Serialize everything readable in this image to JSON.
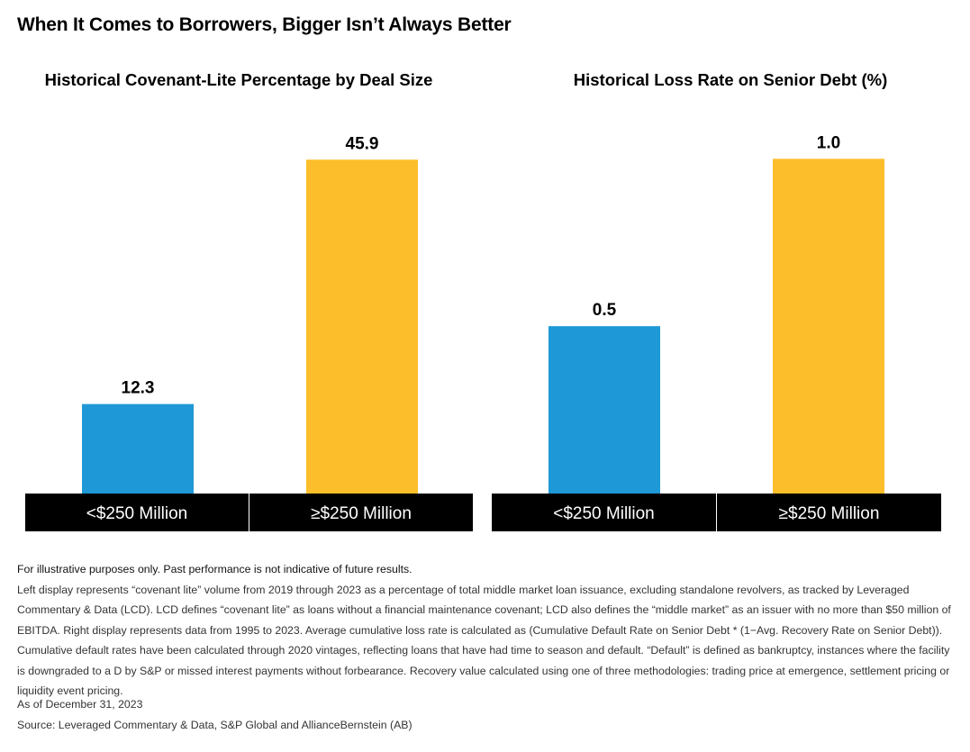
{
  "title": "When It Comes to Borrowers, Bigger Isn’t Always Better",
  "colors": {
    "small": "#1e98d6",
    "large": "#fdbe2b",
    "category_band": "#000000"
  },
  "chart_data": [
    {
      "type": "bar",
      "title": "Historical Covenant-Lite Percentage by Deal Size",
      "categories": [
        "<$250 Million",
        "≥$250 Million"
      ],
      "values": [
        12.3,
        45.9
      ],
      "value_labels": [
        "12.3",
        "45.9"
      ],
      "ylim": [
        0,
        52
      ],
      "grid": false,
      "legend": "none"
    },
    {
      "type": "bar",
      "title": "Historical Loss Rate on Senior Debt (%)",
      "categories": [
        "<$250 Million",
        "≥$250 Million"
      ],
      "values": [
        0.5,
        1.0
      ],
      "value_labels": [
        "0.5",
        "1.0"
      ],
      "ylim": [
        0,
        1.13
      ],
      "grid": false,
      "legend": "none"
    }
  ],
  "footnotes": {
    "disclaimer": "For illustrative purposes only. Past performance is not indicative of future results.",
    "body": "Left display represents “covenant lite” volume from 2019 through 2023 as a percentage of total middle market loan issuance, excluding standalone revolvers, as tracked by Leveraged Commentary & Data (LCD). LCD defines “covenant lite” as loans without a financial maintenance covenant; LCD also defines the “middle market” as an issuer with no more than $50 million of EBITDA. Right display represents data from 1995 to 2023. Average cumulative loss rate is calculated as (Cumulative Default Rate on Senior Debt * (1−Avg. Recovery  Rate on Senior Debt)). Cumulative default rates have been calculated through 2020 vintages, reflecting loans that have had time to season and default. “Default” is defined as bankruptcy, instances where the facility is downgraded to a D by S&P or missed interest payments without forbearance. Recovery value calculated using one of three methodologies: trading price at emergence, settlement pricing or liquidity event pricing."
  },
  "as_of": "As of December 31, 2023",
  "source": "Source: Leveraged Commentary & Data, S&P Global and AllianceBernstein (AB)"
}
